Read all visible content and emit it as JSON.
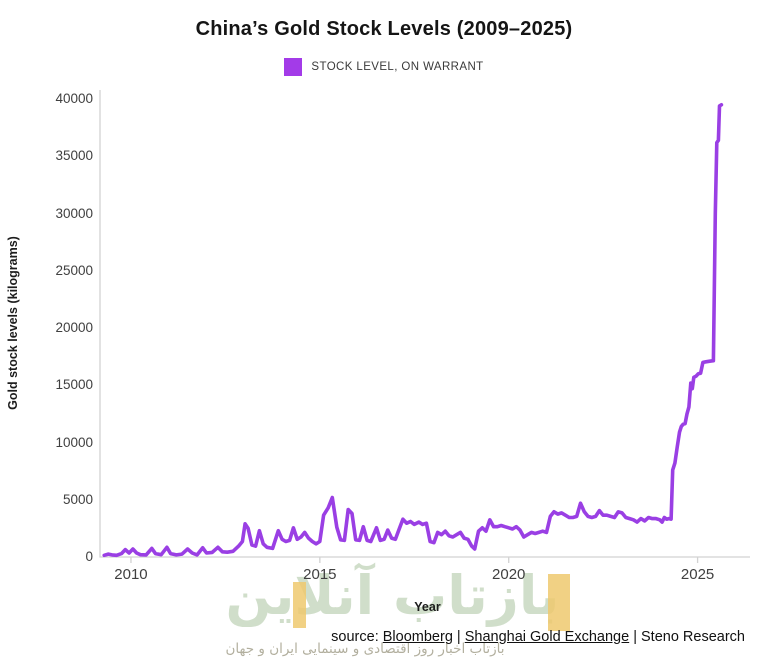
{
  "title": "China’s Gold Stock Levels (2009–2025)",
  "legend": {
    "label": "STOCK LEVEL, ON WARRANT",
    "swatch_color": "#a33be8"
  },
  "source": {
    "prefix": "source: ",
    "separator": " | ",
    "links": [
      "Bloomberg",
      "Shanghai Gold Exchange"
    ],
    "tail": "Steno Research"
  },
  "watermark": {
    "big": "بازتاب آنلاین",
    "small": "بازتاب اخبار روز اقتصادی و سینمایی ایران و جهان",
    "text_color": "#cddcc6",
    "accent_color": "#eec96f"
  },
  "colors": {
    "line": "#9a3fe4",
    "axis": "#d2d2d2",
    "tick_text": "#404040"
  },
  "chart_data": {
    "type": "line",
    "title": "China’s Gold Stock Levels (2009–2025)",
    "xlabel": "Year",
    "ylabel": "Gold stock levels (kilograms)",
    "xlim": [
      2009.18,
      2026.52
    ],
    "ylim": [
      0,
      40790
    ],
    "xticks": [
      2010,
      2015,
      2020,
      2025
    ],
    "yticks": [
      0,
      5000,
      10000,
      15000,
      20000,
      25000,
      30000,
      35000,
      40000
    ],
    "grid": false,
    "legend_position": "top",
    "series": [
      {
        "name": "STOCK LEVEL, ON WARRANT",
        "color": "#9a3fe4",
        "points": [
          [
            2009.29,
            150
          ],
          [
            2009.4,
            250
          ],
          [
            2009.5,
            180
          ],
          [
            2009.62,
            150
          ],
          [
            2009.75,
            300
          ],
          [
            2009.85,
            650
          ],
          [
            2009.95,
            350
          ],
          [
            2010.05,
            700
          ],
          [
            2010.15,
            350
          ],
          [
            2010.25,
            200
          ],
          [
            2010.4,
            180
          ],
          [
            2010.55,
            750
          ],
          [
            2010.65,
            300
          ],
          [
            2010.8,
            200
          ],
          [
            2010.95,
            850
          ],
          [
            2011.05,
            300
          ],
          [
            2011.2,
            180
          ],
          [
            2011.35,
            250
          ],
          [
            2011.5,
            700
          ],
          [
            2011.62,
            350
          ],
          [
            2011.75,
            180
          ],
          [
            2011.9,
            800
          ],
          [
            2012.0,
            350
          ],
          [
            2012.15,
            400
          ],
          [
            2012.3,
            850
          ],
          [
            2012.42,
            450
          ],
          [
            2012.55,
            420
          ],
          [
            2012.7,
            500
          ],
          [
            2012.85,
            950
          ],
          [
            2012.95,
            1350
          ],
          [
            2013.02,
            2900
          ],
          [
            2013.1,
            2500
          ],
          [
            2013.2,
            1050
          ],
          [
            2013.3,
            950
          ],
          [
            2013.4,
            2300
          ],
          [
            2013.5,
            1150
          ],
          [
            2013.6,
            850
          ],
          [
            2013.75,
            750
          ],
          [
            2013.9,
            2300
          ],
          [
            2014.0,
            1550
          ],
          [
            2014.1,
            1350
          ],
          [
            2014.2,
            1450
          ],
          [
            2014.3,
            2550
          ],
          [
            2014.4,
            1550
          ],
          [
            2014.5,
            1750
          ],
          [
            2014.6,
            2150
          ],
          [
            2014.7,
            1650
          ],
          [
            2014.8,
            1350
          ],
          [
            2014.9,
            1150
          ],
          [
            2015.0,
            1350
          ],
          [
            2015.1,
            3650
          ],
          [
            2015.22,
            4300
          ],
          [
            2015.33,
            5200
          ],
          [
            2015.45,
            2600
          ],
          [
            2015.55,
            1500
          ],
          [
            2015.65,
            1450
          ],
          [
            2015.75,
            4150
          ],
          [
            2015.85,
            3800
          ],
          [
            2015.95,
            1500
          ],
          [
            2016.05,
            1450
          ],
          [
            2016.15,
            2650
          ],
          [
            2016.25,
            1450
          ],
          [
            2016.35,
            1350
          ],
          [
            2016.5,
            2550
          ],
          [
            2016.6,
            1450
          ],
          [
            2016.7,
            1550
          ],
          [
            2016.8,
            2350
          ],
          [
            2016.9,
            1650
          ],
          [
            2017.0,
            1550
          ],
          [
            2017.1,
            2450
          ],
          [
            2017.2,
            3300
          ],
          [
            2017.3,
            2950
          ],
          [
            2017.4,
            3100
          ],
          [
            2017.5,
            2850
          ],
          [
            2017.62,
            3050
          ],
          [
            2017.72,
            2850
          ],
          [
            2017.82,
            2950
          ],
          [
            2017.92,
            1350
          ],
          [
            2018.02,
            1250
          ],
          [
            2018.12,
            2150
          ],
          [
            2018.22,
            1950
          ],
          [
            2018.32,
            2250
          ],
          [
            2018.42,
            1850
          ],
          [
            2018.52,
            1750
          ],
          [
            2018.62,
            1950
          ],
          [
            2018.72,
            2150
          ],
          [
            2018.82,
            1650
          ],
          [
            2018.92,
            1550
          ],
          [
            2019.02,
            950
          ],
          [
            2019.1,
            700
          ],
          [
            2019.2,
            2250
          ],
          [
            2019.3,
            2550
          ],
          [
            2019.4,
            2250
          ],
          [
            2019.5,
            3250
          ],
          [
            2019.6,
            2650
          ],
          [
            2019.7,
            2650
          ],
          [
            2019.8,
            2750
          ],
          [
            2019.9,
            2650
          ],
          [
            2020.0,
            2550
          ],
          [
            2020.1,
            2450
          ],
          [
            2020.2,
            2650
          ],
          [
            2020.3,
            2350
          ],
          [
            2020.4,
            1750
          ],
          [
            2020.5,
            1950
          ],
          [
            2020.6,
            2150
          ],
          [
            2020.7,
            2050
          ],
          [
            2020.8,
            2150
          ],
          [
            2020.9,
            2250
          ],
          [
            2021.0,
            2150
          ],
          [
            2021.1,
            3550
          ],
          [
            2021.2,
            3950
          ],
          [
            2021.3,
            3750
          ],
          [
            2021.4,
            3850
          ],
          [
            2021.5,
            3650
          ],
          [
            2021.6,
            3450
          ],
          [
            2021.7,
            3450
          ],
          [
            2021.8,
            3550
          ],
          [
            2021.9,
            4700
          ],
          [
            2022.0,
            3950
          ],
          [
            2022.1,
            3550
          ],
          [
            2022.2,
            3450
          ],
          [
            2022.3,
            3550
          ],
          [
            2022.4,
            4050
          ],
          [
            2022.5,
            3650
          ],
          [
            2022.6,
            3650
          ],
          [
            2022.7,
            3550
          ],
          [
            2022.8,
            3450
          ],
          [
            2022.9,
            3950
          ],
          [
            2023.0,
            3850
          ],
          [
            2023.1,
            3450
          ],
          [
            2023.2,
            3350
          ],
          [
            2023.3,
            3250
          ],
          [
            2023.4,
            3050
          ],
          [
            2023.5,
            3350
          ],
          [
            2023.6,
            3150
          ],
          [
            2023.7,
            3450
          ],
          [
            2023.8,
            3350
          ],
          [
            2023.9,
            3350
          ],
          [
            2024.0,
            3250
          ],
          [
            2024.06,
            3050
          ],
          [
            2024.12,
            3450
          ],
          [
            2024.18,
            3300
          ],
          [
            2024.24,
            3350
          ],
          [
            2024.3,
            3300
          ],
          [
            2024.34,
            7600
          ],
          [
            2024.4,
            8200
          ],
          [
            2024.46,
            9600
          ],
          [
            2024.52,
            10900
          ],
          [
            2024.57,
            11400
          ],
          [
            2024.62,
            11600
          ],
          [
            2024.67,
            11650
          ],
          [
            2024.72,
            12500
          ],
          [
            2024.77,
            13100
          ],
          [
            2024.82,
            15200
          ],
          [
            2024.86,
            14700
          ],
          [
            2024.9,
            15700
          ],
          [
            2024.96,
            15800
          ],
          [
            2025.02,
            16000
          ],
          [
            2025.08,
            16050
          ],
          [
            2025.14,
            17000
          ],
          [
            2025.22,
            17050
          ],
          [
            2025.32,
            17100
          ],
          [
            2025.42,
            17150
          ],
          [
            2025.47,
            30000
          ],
          [
            2025.51,
            36200
          ],
          [
            2025.55,
            36400
          ],
          [
            2025.58,
            39400
          ],
          [
            2025.63,
            39500
          ]
        ]
      }
    ]
  }
}
